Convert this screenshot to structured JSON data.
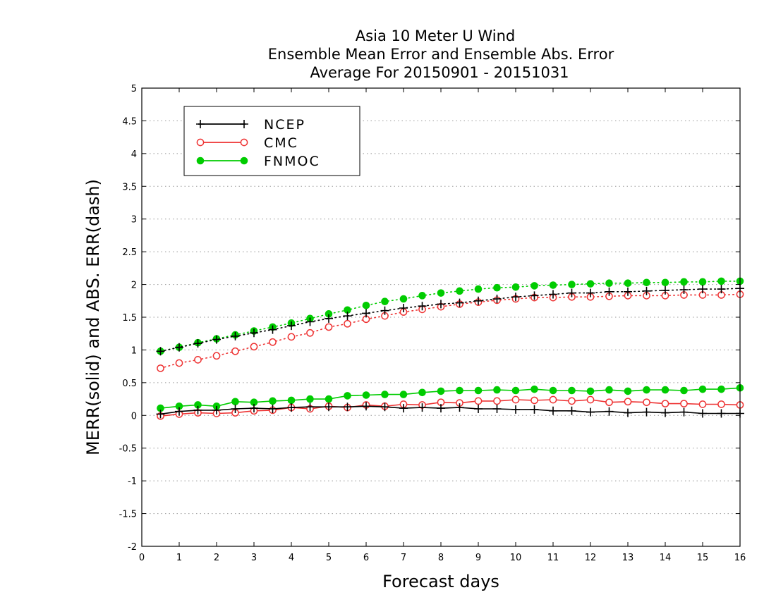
{
  "chart_data": {
    "type": "line",
    "title_lines": [
      "Asia 10 Meter U Wind",
      "Ensemble Mean Error and Ensemble Abs. Error",
      "Average For 20150901 - 20151031"
    ],
    "xlabel": "Forecast days",
    "ylabel": "MERR(solid) and ABS. ERR(dash)",
    "xlim": [
      0,
      16
    ],
    "ylim": [
      -2,
      5
    ],
    "x_ticks": [
      "0",
      "1",
      "2",
      "3",
      "4",
      "5",
      "6",
      "7",
      "8",
      "9",
      "10",
      "11",
      "12",
      "13",
      "14",
      "15",
      "16"
    ],
    "y_ticks": [
      "5",
      "4.5",
      "4",
      "3.5",
      "3",
      "2.5",
      "2",
      "1.5",
      "1",
      "0.5",
      "0",
      "-0.5",
      "-1",
      "-1.5",
      "-2"
    ],
    "grid": "horizontal dotted",
    "legend_position": "top-left",
    "x": [
      0.5,
      1,
      1.5,
      2,
      2.5,
      3,
      3.5,
      4,
      4.5,
      5,
      5.5,
      6,
      6.5,
      7,
      7.5,
      8,
      8.5,
      9,
      9.5,
      10,
      10.5,
      11,
      11.5,
      12,
      12.5,
      13,
      13.5,
      14,
      14.5,
      15,
      15.5,
      16
    ],
    "series": [
      {
        "name": "NCEP",
        "color": "#000000",
        "marker": "plus",
        "merr": [
          0.02,
          0.06,
          0.08,
          0.08,
          0.1,
          0.11,
          0.1,
          0.12,
          0.13,
          0.13,
          0.13,
          0.14,
          0.13,
          0.11,
          0.12,
          0.11,
          0.12,
          0.1,
          0.1,
          0.09,
          0.09,
          0.07,
          0.07,
          0.05,
          0.06,
          0.04,
          0.05,
          0.04,
          0.05,
          0.03,
          0.03,
          0.03
        ],
        "abs_err": [
          0.98,
          1.04,
          1.1,
          1.16,
          1.21,
          1.26,
          1.31,
          1.37,
          1.43,
          1.48,
          1.52,
          1.56,
          1.6,
          1.64,
          1.67,
          1.7,
          1.72,
          1.75,
          1.78,
          1.81,
          1.83,
          1.85,
          1.87,
          1.87,
          1.89,
          1.89,
          1.9,
          1.91,
          1.92,
          1.93,
          1.93,
          1.94
        ]
      },
      {
        "name": "CMC",
        "color": "#ee3333",
        "marker": "open-circle",
        "merr": [
          -0.01,
          0.02,
          0.04,
          0.03,
          0.04,
          0.07,
          0.08,
          0.12,
          0.1,
          0.14,
          0.12,
          0.16,
          0.14,
          0.17,
          0.16,
          0.2,
          0.19,
          0.22,
          0.22,
          0.24,
          0.23,
          0.24,
          0.22,
          0.24,
          0.2,
          0.21,
          0.2,
          0.18,
          0.18,
          0.17,
          0.17,
          0.16
        ],
        "abs_err": [
          0.72,
          0.8,
          0.85,
          0.91,
          0.98,
          1.05,
          1.12,
          1.2,
          1.26,
          1.35,
          1.4,
          1.47,
          1.52,
          1.58,
          1.62,
          1.66,
          1.7,
          1.73,
          1.76,
          1.78,
          1.8,
          1.8,
          1.81,
          1.81,
          1.82,
          1.83,
          1.83,
          1.83,
          1.84,
          1.84,
          1.84,
          1.85
        ]
      },
      {
        "name": "FNMOC",
        "color": "#00cc00",
        "marker": "filled-circle",
        "merr": [
          0.11,
          0.14,
          0.16,
          0.14,
          0.21,
          0.2,
          0.22,
          0.23,
          0.25,
          0.25,
          0.3,
          0.31,
          0.32,
          0.32,
          0.35,
          0.37,
          0.38,
          0.38,
          0.39,
          0.38,
          0.4,
          0.38,
          0.38,
          0.37,
          0.39,
          0.37,
          0.39,
          0.39,
          0.38,
          0.4,
          0.4,
          0.42
        ],
        "abs_err": [
          0.98,
          1.04,
          1.11,
          1.17,
          1.23,
          1.29,
          1.35,
          1.41,
          1.48,
          1.55,
          1.61,
          1.68,
          1.74,
          1.78,
          1.83,
          1.87,
          1.9,
          1.93,
          1.95,
          1.96,
          1.98,
          1.99,
          2.0,
          2.01,
          2.02,
          2.02,
          2.03,
          2.03,
          2.04,
          2.04,
          2.05,
          2.05
        ]
      }
    ]
  }
}
